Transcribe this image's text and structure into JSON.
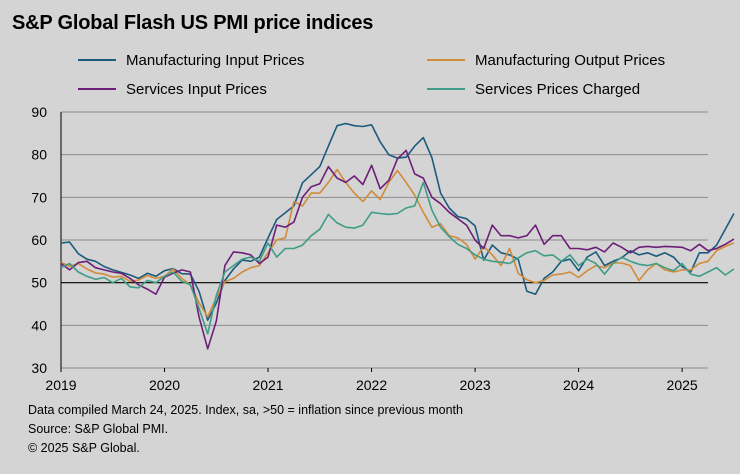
{
  "chart_data": {
    "type": "line",
    "title": "S&P Global Flash US PMI price indices",
    "xlabel": "",
    "ylabel": "",
    "ylim": [
      30,
      90
    ],
    "yticks": [
      30,
      40,
      50,
      60,
      70,
      80,
      90
    ],
    "xlim": [
      2019.0,
      2025.25
    ],
    "xticks": [
      2019,
      2020,
      2021,
      2022,
      2023,
      2024,
      2025
    ],
    "xtick_labels": [
      "2019",
      "2020",
      "2021",
      "2022",
      "2023",
      "2024",
      "2025"
    ],
    "reference_line": 50,
    "grid": "horizontal",
    "legend_position": "top",
    "series": [
      {
        "name": "Manufacturing Input Prices",
        "color": "#1b5b7e",
        "values": [
          59.3,
          59.5,
          56.8,
          55.5,
          55.0,
          53.8,
          53.0,
          52.4,
          51.8,
          51.0,
          52.2,
          51.5,
          52.8,
          53.3,
          52.1,
          52.0,
          48.0,
          41.2,
          45.2,
          50.5,
          53.2,
          55.3,
          55.0,
          56.0,
          60.5,
          64.8,
          66.4,
          68.0,
          73.4,
          75.3,
          77.2,
          82.0,
          86.8,
          87.3,
          86.8,
          86.6,
          87.0,
          83.0,
          80.0,
          79.2,
          79.4,
          82.0,
          84.0,
          79.3,
          71.0,
          67.5,
          65.5,
          65.0,
          63.3,
          55.3,
          58.8,
          57.0,
          56.5,
          55.5,
          48.0,
          47.3,
          51.0,
          52.5,
          55.0,
          55.5,
          52.8,
          56.0,
          57.2,
          54.0,
          55.0,
          55.8,
          57.5,
          56.5,
          57.0,
          56.2,
          57.0,
          56.0,
          53.8,
          52.5,
          57.0,
          57.0,
          58.8,
          62.5,
          66.2
        ]
      },
      {
        "name": "Manufacturing Output Prices",
        "color": "#d18b3a",
        "values": [
          54.8,
          53.8,
          54.5,
          53.2,
          52.3,
          52.0,
          51.3,
          51.5,
          50.3,
          50.6,
          51.7,
          51.0,
          51.5,
          53.2,
          51.0,
          49.5,
          45.3,
          42.0,
          46.5,
          50.2,
          51.0,
          52.5,
          53.5,
          54.0,
          57.0,
          60.0,
          60.5,
          69.0,
          68.0,
          71.0,
          71.0,
          73.5,
          76.5,
          73.5,
          71.0,
          69.0,
          71.5,
          69.5,
          73.5,
          76.3,
          73.5,
          70.5,
          66.5,
          63.0,
          63.8,
          61.0,
          60.5,
          59.0,
          55.5,
          58.5,
          56.5,
          54.0,
          58.0,
          52.2,
          50.7,
          50.0,
          50.5,
          51.8,
          52.0,
          52.5,
          51.2,
          52.8,
          54.0,
          53.5,
          54.6,
          54.6,
          54.0,
          50.5,
          53.0,
          54.5,
          53.0,
          52.5,
          53.0,
          53.0,
          54.5,
          55.0,
          57.5,
          58.5,
          59.3
        ]
      },
      {
        "name": "Services Input Prices",
        "color": "#6d1f78",
        "values": [
          54.5,
          53.0,
          54.7,
          55.0,
          53.5,
          53.0,
          52.5,
          52.2,
          51.0,
          49.5,
          48.5,
          47.3,
          51.3,
          52.2,
          53.0,
          52.5,
          42.0,
          34.5,
          41.0,
          54.0,
          57.2,
          57.0,
          56.5,
          54.5,
          56.0,
          63.5,
          63.0,
          64.2,
          70.0,
          72.5,
          73.2,
          77.2,
          74.5,
          73.5,
          75.0,
          73.0,
          77.5,
          72.0,
          74.0,
          79.0,
          81.0,
          75.5,
          74.5,
          70.0,
          68.5,
          66.5,
          65.0,
          63.5,
          60.0,
          58.0,
          63.5,
          61.0,
          61.0,
          60.5,
          61.0,
          63.5,
          59.0,
          61.0,
          61.0,
          58.0,
          58.0,
          57.7,
          58.3,
          57.2,
          59.3,
          58.3,
          57.0,
          58.3,
          58.5,
          58.3,
          58.5,
          58.4,
          58.3,
          57.5,
          59.0,
          57.5,
          58.0,
          59.0,
          60.2
        ]
      },
      {
        "name": "Services Prices Charged",
        "color": "#3f9c86",
        "values": [
          53.5,
          54.5,
          52.5,
          51.5,
          50.8,
          51.2,
          50.0,
          51.0,
          49.0,
          48.8,
          50.5,
          50.0,
          51.5,
          52.5,
          50.3,
          49.5,
          44.0,
          38.0,
          47.0,
          52.5,
          54.0,
          55.5,
          56.0,
          55.0,
          59.3,
          56.0,
          58.0,
          58.0,
          58.8,
          61.0,
          62.5,
          66.0,
          64.0,
          63.0,
          62.8,
          63.5,
          66.5,
          66.2,
          66.0,
          66.2,
          67.5,
          68.0,
          73.5,
          67.0,
          63.0,
          60.8,
          59.0,
          58.0,
          56.5,
          55.5,
          55.0,
          54.8,
          54.5,
          55.8,
          57.0,
          57.5,
          56.3,
          56.5,
          55.0,
          56.5,
          54.0,
          55.5,
          54.5,
          52.0,
          54.5,
          56.0,
          55.0,
          54.3,
          54.0,
          54.5,
          53.5,
          52.8,
          54.5,
          52.0,
          51.5,
          52.5,
          53.5,
          51.8,
          53.2
        ]
      }
    ]
  },
  "footnotes": {
    "line1": "Data compiled March 24, 2025. Index, sa, >50 = inflation since previous month",
    "line2": "Source: S&P Global PMI.",
    "line3": "© 2025 S&P Global."
  }
}
